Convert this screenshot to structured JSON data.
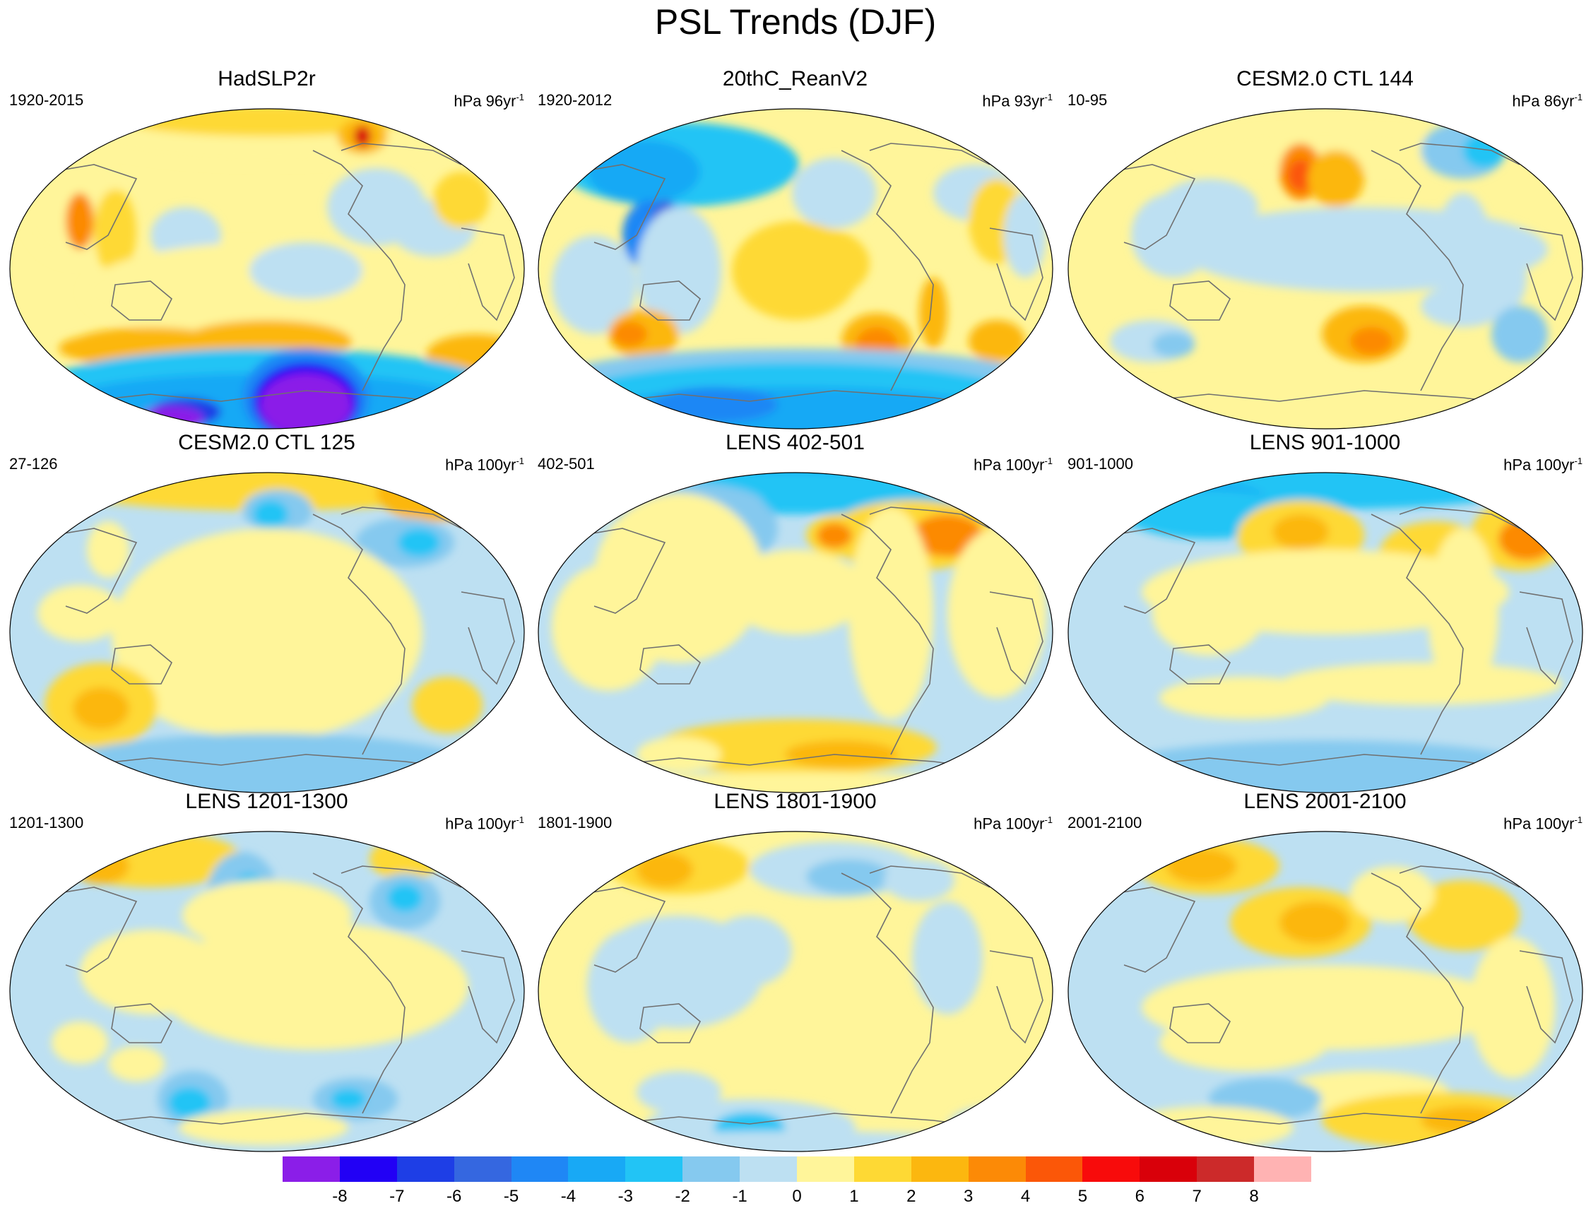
{
  "title": "PSL Trends (DJF)",
  "panels": [
    {
      "title": "HadSLP2r",
      "period": "1920-2015",
      "units": "hPa 96yr",
      "unit_exp": "-1",
      "pattern": "hadslp"
    },
    {
      "title": "20thC_ReanV2",
      "period": "1920-2012",
      "units": "hPa 93yr",
      "unit_exp": "-1",
      "pattern": "rean"
    },
    {
      "title": "CESM2.0 CTL 144",
      "period": "10-95",
      "units": "hPa 86yr",
      "unit_exp": "-1",
      "pattern": "ctl144"
    },
    {
      "title": "CESM2.0 CTL 125",
      "period": "27-126",
      "units": "hPa 100yr",
      "unit_exp": "-1",
      "pattern": "ctl125"
    },
    {
      "title": "LENS 402-501",
      "period": "402-501",
      "units": "hPa 100yr",
      "unit_exp": "-1",
      "pattern": "lens402"
    },
    {
      "title": "LENS 901-1000",
      "period": "901-1000",
      "units": "hPa 100yr",
      "unit_exp": "-1",
      "pattern": "lens901"
    },
    {
      "title": "LENS 1201-1300",
      "period": "1201-1300",
      "units": "hPa 100yr",
      "unit_exp": "-1",
      "pattern": "lens1201"
    },
    {
      "title": "LENS 1801-1900",
      "period": "1801-1900",
      "units": "hPa 100yr",
      "unit_exp": "-1",
      "pattern": "lens1801"
    },
    {
      "title": "LENS 2001-2100",
      "period": "2001-2100",
      "units": "hPa 100yr",
      "unit_exp": "-1",
      "pattern": "lens2001"
    }
  ],
  "colorbar": {
    "colors": [
      "#8b1ee8",
      "#2200f5",
      "#1e3ee6",
      "#3567e0",
      "#1f87f5",
      "#18a9f5",
      "#22c4f5",
      "#85c9ef",
      "#bde0f2",
      "#fff59a",
      "#fed934",
      "#fcb70f",
      "#fc8a06",
      "#fb5708",
      "#f80b0b",
      "#d9000a",
      "#cc2a2a",
      "#ffb3b3"
    ],
    "labels": [
      "-8",
      "-7",
      "-6",
      "-5",
      "-4",
      "-3",
      "-2",
      "-1",
      "0",
      "1",
      "2",
      "3",
      "4",
      "5",
      "6",
      "7",
      "8"
    ]
  }
}
